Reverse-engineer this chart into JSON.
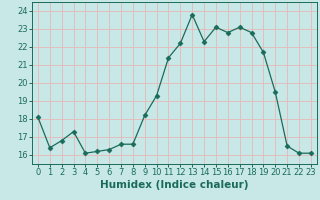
{
  "x": [
    0,
    1,
    2,
    3,
    4,
    5,
    6,
    7,
    8,
    9,
    10,
    11,
    12,
    13,
    14,
    15,
    16,
    17,
    18,
    19,
    20,
    21,
    22,
    23
  ],
  "y": [
    18.1,
    16.4,
    16.8,
    17.3,
    16.1,
    16.2,
    16.3,
    16.6,
    16.6,
    18.2,
    19.3,
    21.4,
    22.2,
    23.8,
    22.3,
    23.1,
    22.8,
    23.1,
    22.8,
    21.7,
    19.5,
    16.5,
    16.1,
    16.1
  ],
  "line_color": "#1a6b5a",
  "marker": "D",
  "marker_size": 2.5,
  "bg_color": "#c8e8e8",
  "grid_color": "#e8b8b8",
  "xlabel": "Humidex (Indice chaleur)",
  "ylim": [
    15.5,
    24.5
  ],
  "xlim": [
    -0.5,
    23.5
  ],
  "yticks": [
    16,
    17,
    18,
    19,
    20,
    21,
    22,
    23,
    24
  ],
  "xticks": [
    0,
    1,
    2,
    3,
    4,
    5,
    6,
    7,
    8,
    9,
    10,
    11,
    12,
    13,
    14,
    15,
    16,
    17,
    18,
    19,
    20,
    21,
    22,
    23
  ],
  "tick_fontsize": 6,
  "xlabel_fontsize": 7.5
}
